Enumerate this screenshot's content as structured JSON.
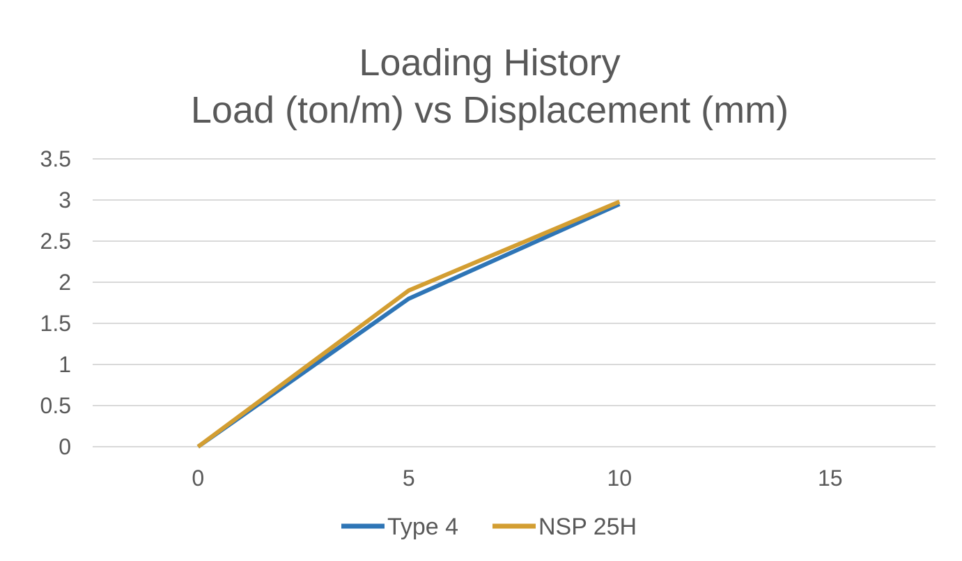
{
  "chart_data": {
    "type": "line",
    "title": [
      "Loading History",
      "Load (ton/m) vs Displacement (mm)"
    ],
    "xlabel": "",
    "ylabel": "",
    "xlim": [
      -2.5,
      17.5
    ],
    "ylim": [
      0,
      3.5
    ],
    "x_ticks": [
      0,
      5,
      10,
      15
    ],
    "y_ticks": [
      0,
      0.5,
      1,
      1.5,
      2,
      2.5,
      3,
      3.5
    ],
    "x_tick_labels": [
      "0",
      "5",
      "10",
      "15"
    ],
    "y_tick_labels": [
      "0",
      "0.5",
      "1",
      "1.5",
      "2",
      "2.5",
      "3",
      "3.5"
    ],
    "grid": "horizontal",
    "legend": "bottom",
    "series": [
      {
        "name": "Type 4",
        "color": "#2e75b6",
        "x": [
          0,
          5,
          10
        ],
        "y": [
          0,
          1.8,
          2.95
        ]
      },
      {
        "name": "NSP 25H",
        "color": "#d39e32",
        "x": [
          0,
          5,
          10
        ],
        "y": [
          0,
          1.9,
          2.98
        ]
      }
    ]
  }
}
